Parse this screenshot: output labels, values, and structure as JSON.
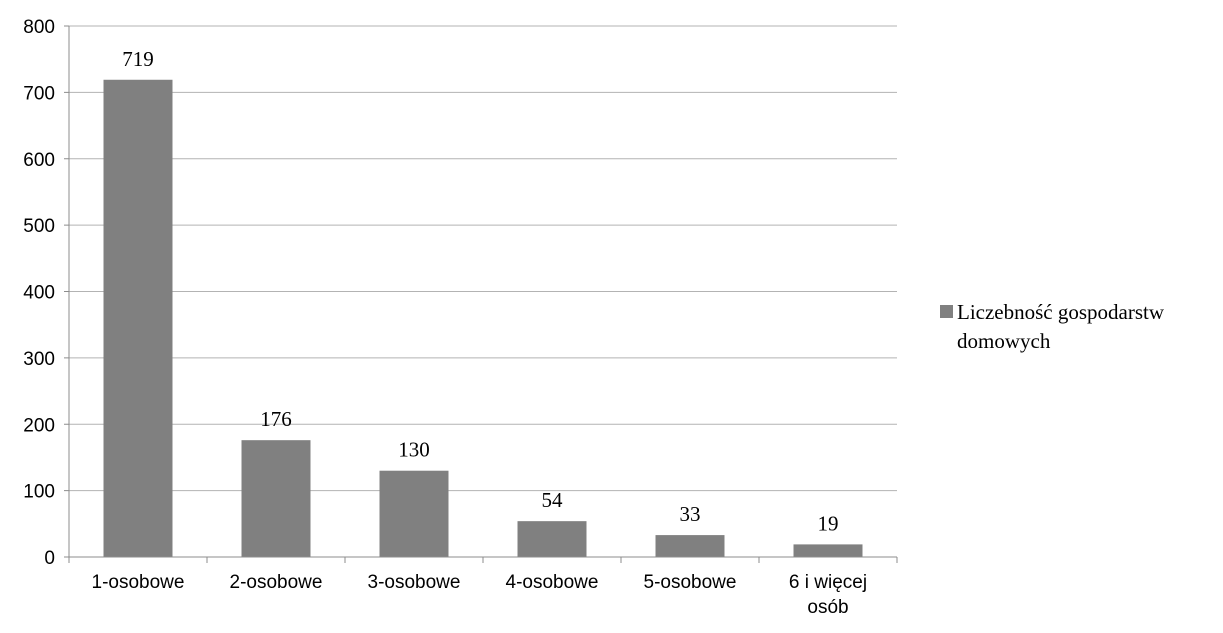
{
  "chart_data": {
    "type": "bar",
    "categories": [
      "1-osobowe",
      "2-osobowe",
      "3-osobowe",
      "4-osobowe",
      "5-osobowe",
      "6 i więcej osób"
    ],
    "category_lines": [
      [
        "1-osobowe"
      ],
      [
        "2-osobowe"
      ],
      [
        "3-osobowe"
      ],
      [
        "4-osobowe"
      ],
      [
        "5-osobowe"
      ],
      [
        "6 i więcej",
        "osób"
      ]
    ],
    "series": [
      {
        "name": "Liczebność gospodarstw domowych",
        "values": [
          719,
          176,
          130,
          54,
          33,
          19
        ],
        "color": "#808080"
      }
    ],
    "legend": {
      "position": "right",
      "lines": [
        "Liczebność gospodarstw",
        "domowych"
      ]
    },
    "ylim": [
      0,
      800
    ],
    "yticks": [
      0,
      100,
      200,
      300,
      400,
      500,
      600,
      700,
      800
    ],
    "grid": true,
    "data_labels": true
  }
}
